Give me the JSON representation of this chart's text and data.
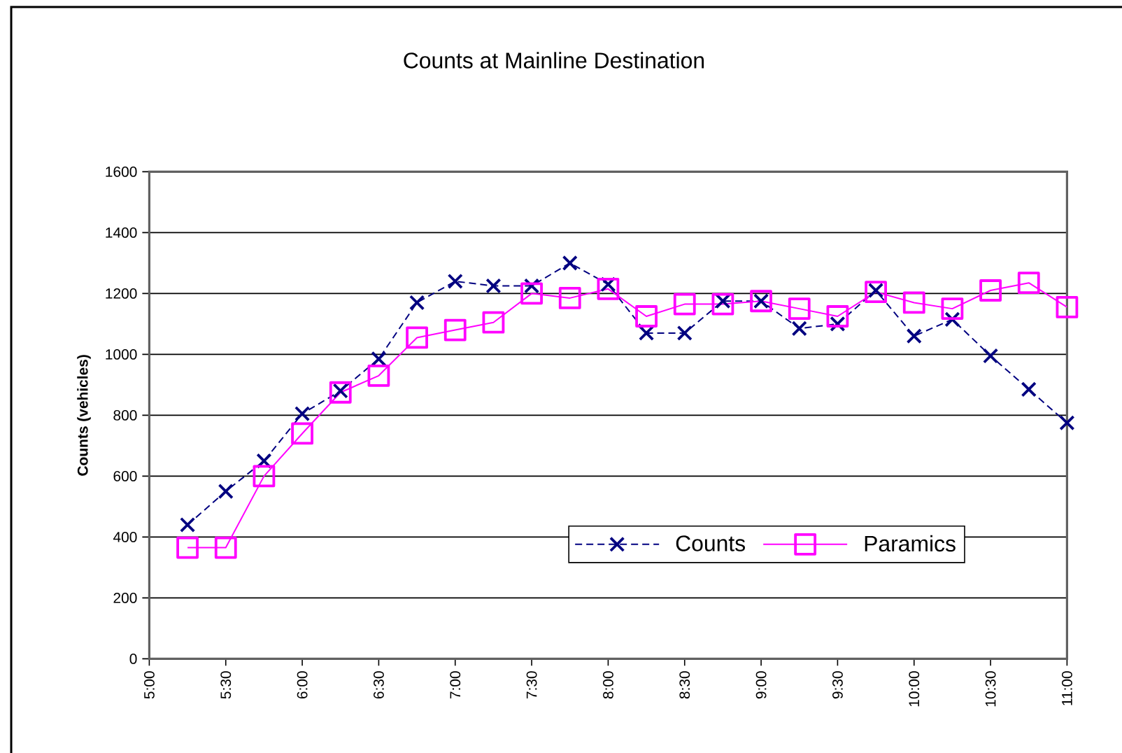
{
  "chart_data": {
    "type": "line",
    "title": "Counts at Mainline Destination",
    "ylabel": "Counts (vehicles)",
    "x": [
      5.25,
      5.5,
      5.75,
      6,
      6.25,
      6.5,
      6.75,
      7,
      7.25,
      7.5,
      7.75,
      8,
      8.25,
      8.5,
      8.75,
      9,
      9.25,
      9.5,
      9.75,
      10,
      10.25,
      10.5,
      10.75,
      11
    ],
    "series": [
      {
        "name": "Counts",
        "color": "#000080",
        "marker": "cross",
        "line_style": "dashed",
        "values": [
          440,
          550,
          650,
          805,
          880,
          985,
          1170,
          1240,
          1225,
          1225,
          1300,
          1230,
          1070,
          1070,
          1175,
          1175,
          1085,
          1100,
          1210,
          1060,
          1115,
          995,
          885,
          775
        ]
      },
      {
        "name": "Paramics",
        "color": "#ff00ff",
        "marker": "square",
        "line_style": "solid",
        "values": [
          365,
          365,
          600,
          740,
          875,
          930,
          1055,
          1080,
          1105,
          1200,
          1185,
          1215,
          1125,
          1165,
          1165,
          1175,
          1150,
          1125,
          1205,
          1170,
          1150,
          1210,
          1235,
          1155
        ]
      }
    ],
    "xlim": [
      5,
      11
    ],
    "xticks": [
      {
        "value": 5,
        "label": "5:00"
      },
      {
        "value": 5.5,
        "label": "5:30"
      },
      {
        "value": 6,
        "label": "6:00"
      },
      {
        "value": 6.5,
        "label": "6:30"
      },
      {
        "value": 7,
        "label": "7:00"
      },
      {
        "value": 7.5,
        "label": "7:30"
      },
      {
        "value": 8,
        "label": "8:00"
      },
      {
        "value": 8.5,
        "label": "8:30"
      },
      {
        "value": 9,
        "label": "9:00"
      },
      {
        "value": 9.5,
        "label": "9:30"
      },
      {
        "value": 10,
        "label": "10:00"
      },
      {
        "value": 10.5,
        "label": "10:30"
      },
      {
        "value": 11,
        "label": "11:00"
      }
    ],
    "ylim": [
      0,
      1600
    ],
    "yticks": [
      0,
      200,
      400,
      600,
      800,
      1000,
      1200,
      1400,
      1600
    ],
    "grid": "y",
    "legend": "bottom right"
  }
}
